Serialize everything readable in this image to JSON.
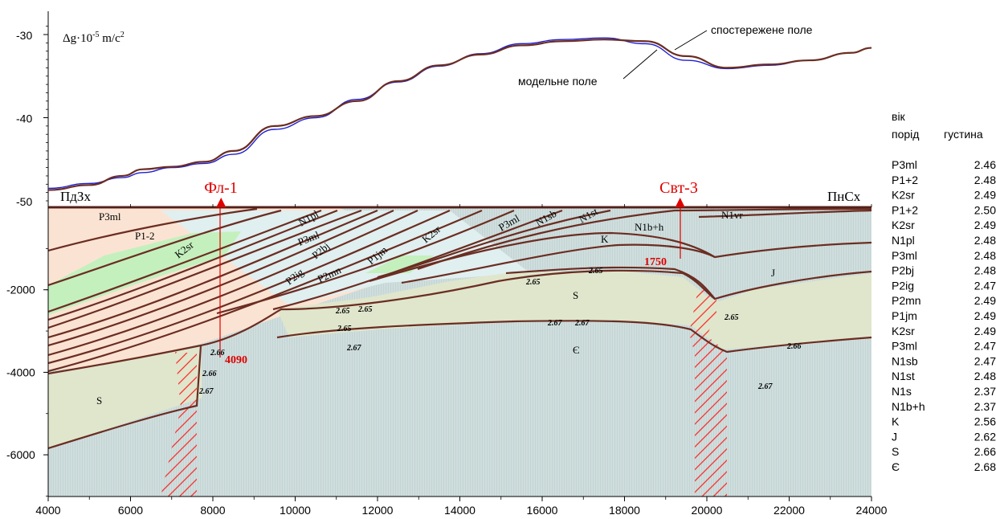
{
  "chart_data": [
    {
      "type": "line",
      "ylabel_prefix": "Δg·10",
      "ylabel_exp": "-5",
      "ylabel_units": " m/c",
      "ylabel_units_exp": "2",
      "xlim": [
        4000,
        24000
      ],
      "ylim": [
        -51,
        -28
      ],
      "yticks": [
        -30,
        -40,
        -50
      ],
      "series": [
        {
          "name": "спостережене поле",
          "color": "#6b2d22",
          "x": [
            4000,
            5000,
            5800,
            6300,
            7000,
            7800,
            8500,
            9500,
            10500,
            11500,
            12500,
            13500,
            14500,
            15500,
            16500,
            17500,
            18500,
            19500,
            20500,
            21500,
            22500,
            23500,
            24000
          ],
          "y": [
            -48.7,
            -48.1,
            -47.0,
            -46.2,
            -45.9,
            -45.3,
            -44.0,
            -41.0,
            -39.8,
            -38.0,
            -35.6,
            -33.7,
            -32.4,
            -31.3,
            -30.8,
            -30.6,
            -30.8,
            -32.6,
            -34.0,
            -33.6,
            -33.1,
            -32.2,
            -31.6
          ]
        },
        {
          "name": "модельне поле",
          "color": "#1f1fd0",
          "x": [
            4000,
            5000,
            5800,
            6300,
            7000,
            7800,
            8500,
            9500,
            10500,
            11500,
            12500,
            13500,
            14500,
            15500,
            16500,
            17500,
            18500,
            19500,
            20500,
            21500,
            22500,
            23500,
            24000
          ],
          "y": [
            -48.5,
            -47.9,
            -47.2,
            -46.6,
            -46.0,
            -45.5,
            -44.4,
            -41.4,
            -40.0,
            -37.8,
            -35.7,
            -33.8,
            -32.3,
            -31.1,
            -30.6,
            -30.4,
            -31.1,
            -33.1,
            -34.1,
            -33.7,
            -33.1,
            -32.2,
            -31.6
          ]
        }
      ],
      "annotations": {
        "observed": "спостережене поле",
        "model": "модельне поле"
      }
    },
    {
      "type": "area",
      "xticks": [
        4000,
        6000,
        8000,
        10000,
        12000,
        14000,
        16000,
        18000,
        20000,
        22000,
        24000
      ],
      "yticks": [
        -2000,
        -4000,
        -6000
      ],
      "xlim": [
        4000,
        24000
      ],
      "ylim": [
        -7000,
        0
      ],
      "direction_left": "ПдЗх",
      "direction_right": "ПнСх",
      "wells": [
        {
          "name": "Фл-1",
          "x": 8200,
          "depth": "4090"
        },
        {
          "name": "Свт-3",
          "x": 19350,
          "depth": "1750"
        }
      ],
      "layer_labels": [
        "P3ml",
        "P1-2",
        "K2sr",
        "N1pl",
        "P3ml",
        "P2bj",
        "P2ig",
        "P2mn",
        "P1jm",
        "K2sr",
        "P3ml",
        "N1sb",
        "N1st",
        "N1b+h",
        "K",
        "N1vr",
        "J",
        "S",
        "Є",
        "S"
      ],
      "density_labels": [
        "2.65",
        "2.65",
        "2.65",
        "2.65",
        "2.65",
        "2.67",
        "2.67",
        "2.66",
        "2.67",
        "2.66",
        "2.67",
        "2.65",
        "2.66",
        "2.67"
      ]
    }
  ],
  "legend": {
    "header_age_1": "вік",
    "header_age_2": "порід",
    "header_density": "густина",
    "rows": [
      {
        "age": "P3ml",
        "density": "2.46"
      },
      {
        "age": "P1+2",
        "density": "2.48"
      },
      {
        "age": "K2sr",
        "density": "2.49"
      },
      {
        "age": "P1+2",
        "density": "2.50"
      },
      {
        "age": "K2sr",
        "density": "2.49"
      },
      {
        "age": "N1pl",
        "density": "2.48"
      },
      {
        "age": "P3ml",
        "density": "2.48"
      },
      {
        "age": "P2bj",
        "density": "2.48"
      },
      {
        "age": "P2ig",
        "density": "2.47"
      },
      {
        "age": "P2mn",
        "density": "2.49"
      },
      {
        "age": "P1jm",
        "density": "2.49"
      },
      {
        "age": "K2sr",
        "density": "2.49"
      },
      {
        "age": "P3ml",
        "density": "2.47"
      },
      {
        "age": "N1sb",
        "density": "2.47"
      },
      {
        "age": "N1st",
        "density": "2.48"
      },
      {
        "age": "N1s",
        "density": "2.37"
      },
      {
        "age": "N1b+h",
        "density": "2.37"
      },
      {
        "age": "K",
        "density": "2.56"
      },
      {
        "age": "J",
        "density": "2.62"
      },
      {
        "age": "S",
        "density": "2.66"
      },
      {
        "age": "Є",
        "density": "2.68"
      }
    ]
  },
  "colors": {
    "section_bg": "#cfdedd",
    "peach": "#fbe3d3",
    "green": "#c4f0be",
    "olive": "#dfe6cc",
    "light_blue": "#e0efef",
    "boundary": "#6b2d22",
    "model": "#1f1fd0",
    "well": "#e00000"
  }
}
